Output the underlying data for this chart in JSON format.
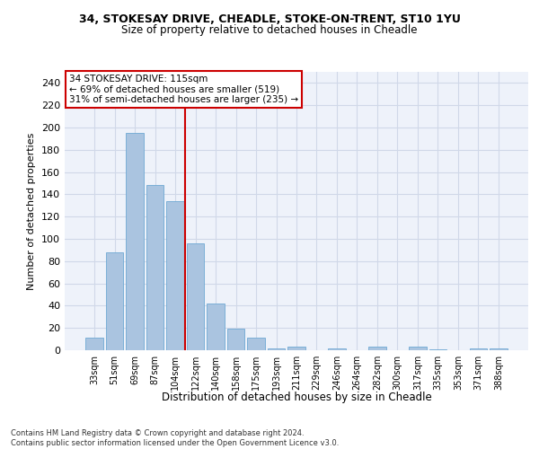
{
  "title_line1": "34, STOKESAY DRIVE, CHEADLE, STOKE-ON-TRENT, ST10 1YU",
  "title_line2": "Size of property relative to detached houses in Cheadle",
  "xlabel": "Distribution of detached houses by size in Cheadle",
  "ylabel": "Number of detached properties",
  "categories": [
    "33sqm",
    "51sqm",
    "69sqm",
    "87sqm",
    "104sqm",
    "122sqm",
    "140sqm",
    "158sqm",
    "175sqm",
    "193sqm",
    "211sqm",
    "229sqm",
    "246sqm",
    "264sqm",
    "282sqm",
    "300sqm",
    "317sqm",
    "335sqm",
    "353sqm",
    "371sqm",
    "388sqm"
  ],
  "values": [
    11,
    88,
    195,
    148,
    134,
    96,
    42,
    19,
    11,
    2,
    3,
    0,
    2,
    0,
    3,
    0,
    3,
    1,
    0,
    2,
    2
  ],
  "bar_color": "#aac4e0",
  "bar_edge_color": "#6ea8d4",
  "vline_x": 4.5,
  "vline_color": "#cc0000",
  "annotation_line1": "34 STOKESAY DRIVE: 115sqm",
  "annotation_line2": "← 69% of detached houses are smaller (519)",
  "annotation_line3": "31% of semi-detached houses are larger (235) →",
  "annotation_box_color": "white",
  "annotation_box_edge_color": "#cc0000",
  "ylim": [
    0,
    250
  ],
  "yticks": [
    0,
    20,
    40,
    60,
    80,
    100,
    120,
    140,
    160,
    180,
    200,
    220,
    240
  ],
  "grid_color": "#d0d8e8",
  "background_color": "#eef2fa",
  "footer_line1": "Contains HM Land Registry data © Crown copyright and database right 2024.",
  "footer_line2": "Contains public sector information licensed under the Open Government Licence v3.0."
}
